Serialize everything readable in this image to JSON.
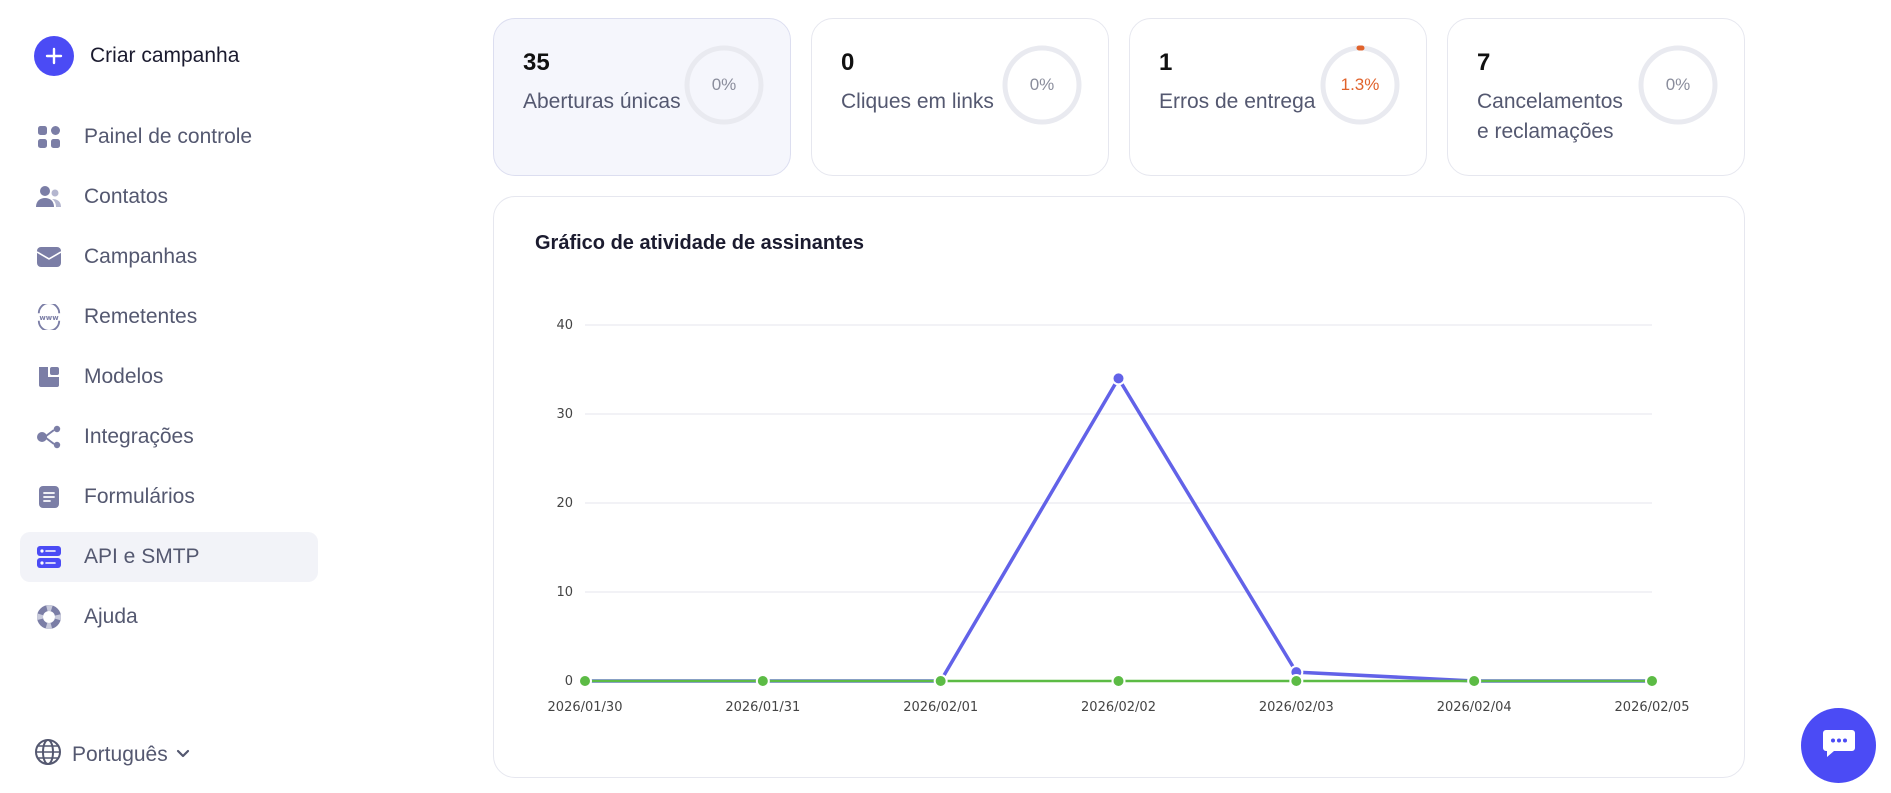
{
  "sidebar": {
    "create_label": "Criar campanha",
    "items": [
      {
        "label": "Painel de controle",
        "icon": "dashboard-icon"
      },
      {
        "label": "Contatos",
        "icon": "contacts-icon"
      },
      {
        "label": "Campanhas",
        "icon": "campaigns-icon"
      },
      {
        "label": "Remetentes",
        "icon": "senders-icon"
      },
      {
        "label": "Modelos",
        "icon": "templates-icon"
      },
      {
        "label": "Integrações",
        "icon": "integrations-icon"
      },
      {
        "label": "Formulários",
        "icon": "forms-icon"
      },
      {
        "label": "API e SMTP",
        "icon": "api-icon",
        "active": true
      },
      {
        "label": "Ajuda",
        "icon": "help-icon"
      }
    ],
    "language": "Português"
  },
  "stats": [
    {
      "value": "35",
      "label": "Aberturas únicas",
      "percent": "0%"
    },
    {
      "value": "0",
      "label": "Cliques em links",
      "percent": "0%"
    },
    {
      "value": "1",
      "label": "Erros de entrega",
      "percent": "1.3%"
    },
    {
      "value": "7",
      "label": "Cancelamentos e reclamações",
      "percent": "0%"
    }
  ],
  "colors": {
    "accent": "#4b4bf5",
    "series_opens": "#6262e8",
    "series_clicks": "#5cbb45",
    "warning": "#e0622b"
  },
  "chart_data": {
    "type": "line",
    "title": "Gráfico de atividade de assinantes",
    "x": [
      "2026/01/30",
      "2026/01/31",
      "2026/02/01",
      "2026/02/02",
      "2026/02/03",
      "2026/02/04",
      "2026/02/05"
    ],
    "ylim": [
      0,
      40
    ],
    "yticks": [
      0,
      10,
      20,
      30,
      40
    ],
    "grid": true,
    "series": [
      {
        "values": [
          0,
          0,
          0,
          34,
          1,
          0,
          0
        ]
      },
      {
        "values": [
          0,
          0,
          0,
          0,
          0,
          0,
          0
        ]
      }
    ]
  }
}
